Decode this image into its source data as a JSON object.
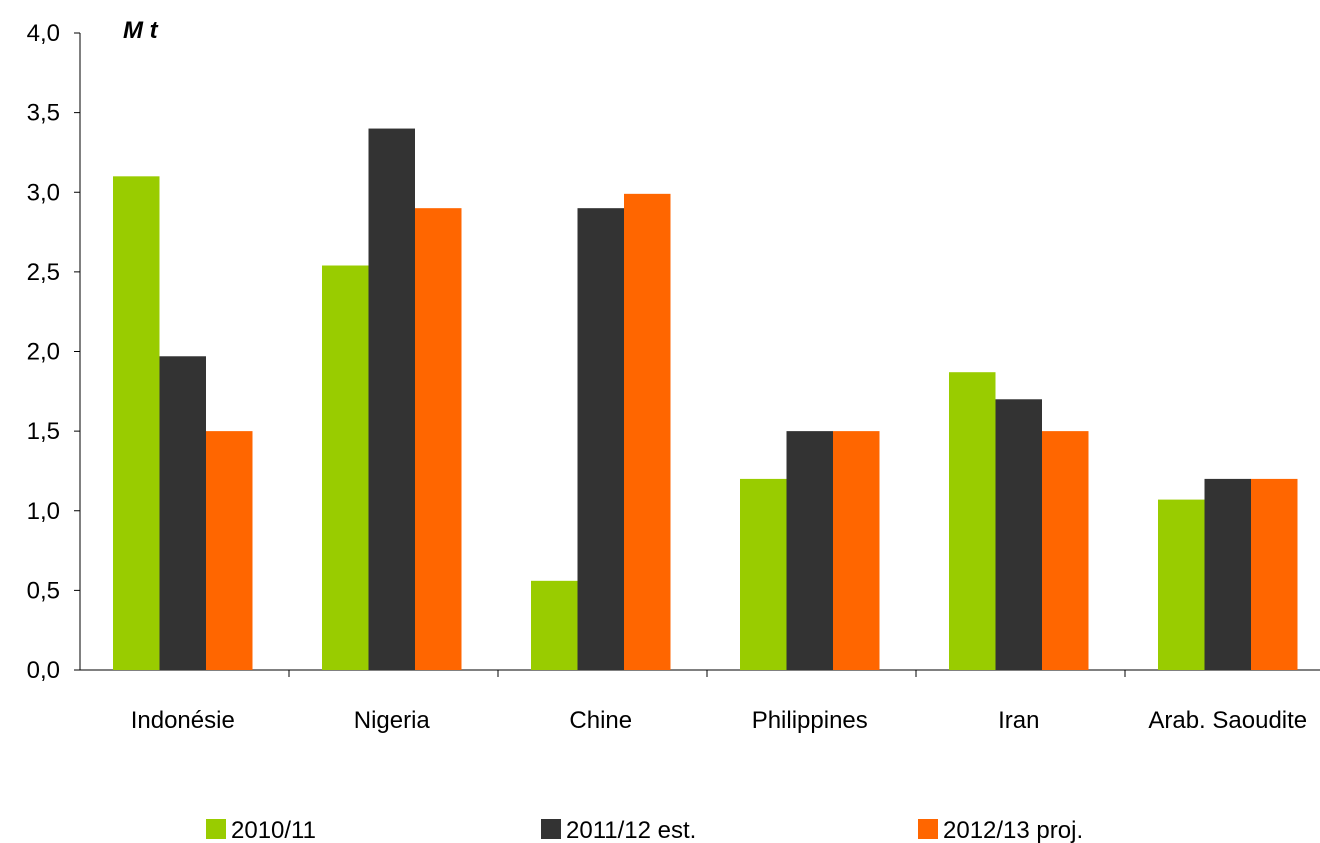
{
  "chart_data": {
    "type": "bar",
    "unit_label": "M t",
    "categories": [
      "Indonésie",
      "Nigeria",
      "Chine",
      "Philippines",
      "Iran",
      "Arab. Saoudite"
    ],
    "series": [
      {
        "name": "2010/11",
        "color": "#99CC00",
        "values": [
          3.1,
          2.54,
          0.56,
          1.2,
          1.87,
          1.07
        ]
      },
      {
        "name": "2011/12 est.",
        "color": "#333333",
        "values": [
          1.97,
          3.4,
          2.9,
          1.5,
          1.7,
          1.2
        ]
      },
      {
        "name": "2012/13 proj.",
        "color": "#FF6600",
        "values": [
          1.5,
          2.9,
          2.99,
          1.5,
          1.5,
          1.2
        ]
      }
    ],
    "ylim": [
      0,
      4
    ],
    "yticks": [
      "0,0",
      "0,5",
      "1,0",
      "1,5",
      "2,0",
      "2,5",
      "3,0",
      "3,5",
      "4,0"
    ],
    "grid": false,
    "legend_position": "bottom"
  }
}
